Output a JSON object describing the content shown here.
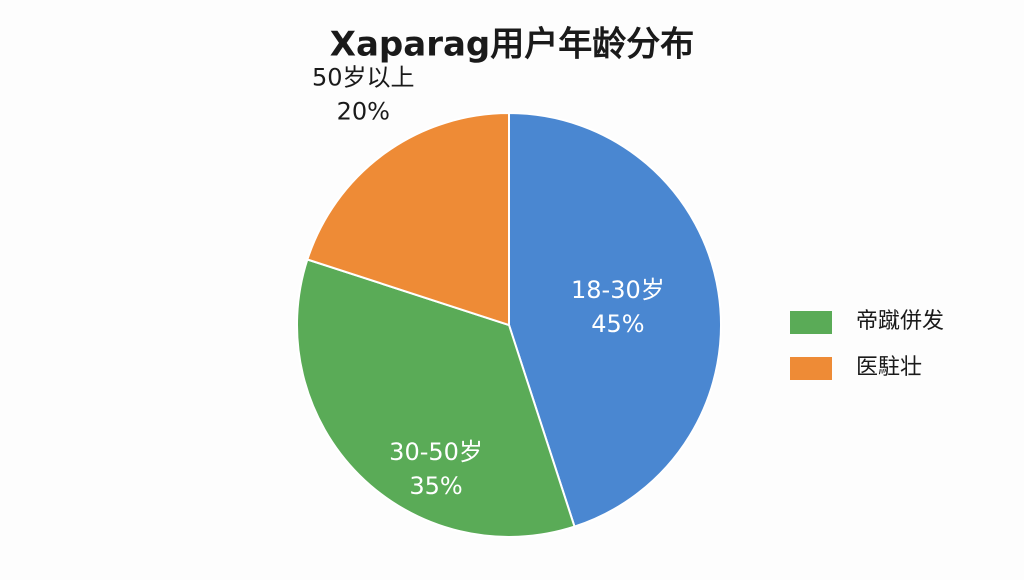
{
  "chart_data": {
    "type": "pie",
    "title": "Xaparag用户年龄分布",
    "categories": [
      "18-30岁",
      "30-50岁",
      "50岁以上"
    ],
    "values": [
      45,
      35,
      20
    ],
    "value_labels": [
      "45%",
      "35%",
      "20%"
    ],
    "colors": [
      "#4a87d1",
      "#5aab57",
      "#ee8b36"
    ],
    "legend": [
      {
        "label": "帝蹴併发",
        "color": "#5aab57"
      },
      {
        "label": "医駐壮",
        "color": "#ee8b36"
      }
    ]
  }
}
